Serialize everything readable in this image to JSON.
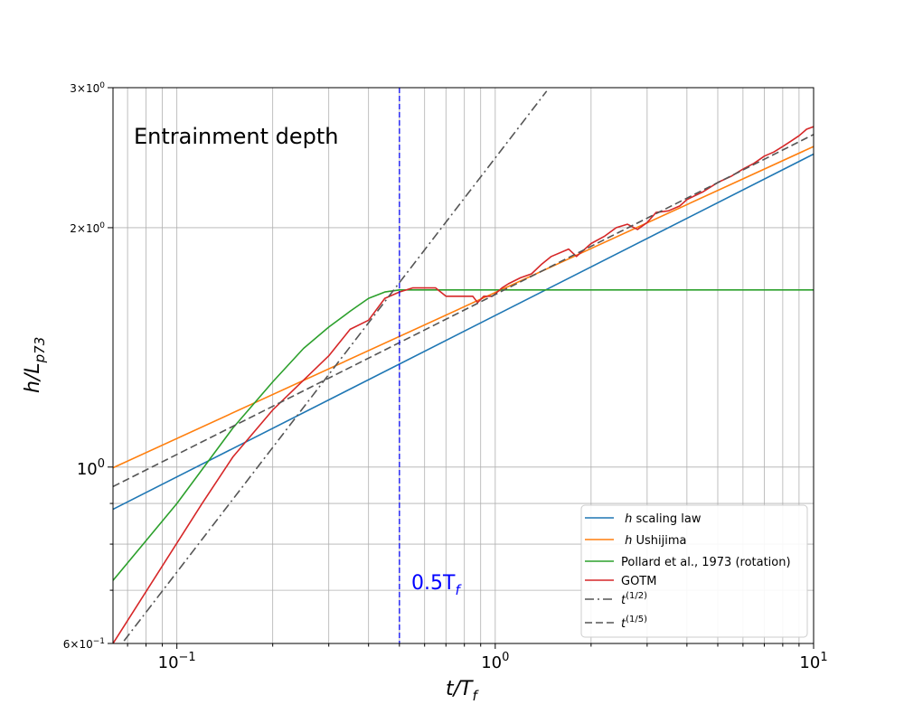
{
  "chart_data": {
    "type": "line",
    "title": "",
    "annotation": "Entrainment depth",
    "xlabel": "t/T",
    "xlabel_sub": "f",
    "ylabel": "h/L",
    "ylabel_sub": "p73",
    "xscale": "log",
    "yscale": "log",
    "xlim": [
      0.063,
      10
    ],
    "ylim": [
      0.6,
      3.0
    ],
    "grid": "both (major and minor)",
    "legend_position": "lower-right",
    "x_ticks": [
      {
        "value": 0.1,
        "base": "10",
        "exp": "−1"
      },
      {
        "value": 1,
        "base": "10",
        "exp": "0"
      },
      {
        "value": 10,
        "base": "10",
        "exp": "1"
      }
    ],
    "y_ticks": [
      {
        "value": 3,
        "mant": "3",
        "base": "10",
        "exp": "0"
      },
      {
        "value": 2,
        "mant": "2",
        "base": "10",
        "exp": "0"
      },
      {
        "value": 1,
        "mant": "",
        "base": "10",
        "exp": "0"
      },
      {
        "value": 0.6,
        "mant": "6",
        "base": "10",
        "exp": "−1"
      }
    ],
    "vline": {
      "x": 0.5,
      "label_main": "0.5T",
      "label_sub": "f",
      "color": "#0000ff"
    },
    "series": [
      {
        "name": "h scaling law",
        "name_italic": "h",
        "name_rest": " scaling law",
        "color": "#1f77b4",
        "style": "solid",
        "x": [
          0.063,
          10
        ],
        "y": [
          0.885,
          2.475
        ]
      },
      {
        "name": "h Ushijima",
        "name_italic": "h",
        "name_rest": " Ushijima",
        "color": "#ff7f0e",
        "style": "solid",
        "x": [
          0.063,
          10
        ],
        "y": [
          0.998,
          2.53
        ]
      },
      {
        "name": "Pollard et al., 1973 (rotation)",
        "color": "#2ca02c",
        "style": "solid",
        "x": [
          0.063,
          0.1,
          0.15,
          0.2,
          0.25,
          0.3,
          0.35,
          0.4,
          0.45,
          0.5,
          1,
          10
        ],
        "y": [
          0.72,
          0.9,
          1.12,
          1.28,
          1.41,
          1.5,
          1.57,
          1.63,
          1.66,
          1.67,
          1.67,
          1.67
        ]
      },
      {
        "name": "GOTM",
        "color": "#d62728",
        "style": "solid",
        "x": [
          0.063,
          0.12,
          0.15,
          0.2,
          0.3,
          0.35,
          0.4,
          0.45,
          0.5,
          0.55,
          0.65,
          0.7,
          0.85,
          0.88,
          0.92,
          0.98,
          1.05,
          1.1,
          1.2,
          1.3,
          1.4,
          1.5,
          1.7,
          1.8,
          2.0,
          2.2,
          2.4,
          2.6,
          2.8,
          3.0,
          3.2,
          3.5,
          3.8,
          4.0,
          4.5,
          5.0,
          5.5,
          6.0,
          6.5,
          7.0,
          7.5,
          8.0,
          8.5,
          9.0,
          9.5,
          10.0
        ],
        "y": [
          0.6,
          0.9,
          1.03,
          1.18,
          1.38,
          1.49,
          1.53,
          1.63,
          1.66,
          1.68,
          1.68,
          1.64,
          1.64,
          1.61,
          1.64,
          1.64,
          1.68,
          1.7,
          1.73,
          1.75,
          1.8,
          1.84,
          1.88,
          1.84,
          1.91,
          1.95,
          2.0,
          2.02,
          1.99,
          2.03,
          2.09,
          2.1,
          2.13,
          2.17,
          2.22,
          2.28,
          2.32,
          2.37,
          2.41,
          2.46,
          2.49,
          2.53,
          2.57,
          2.61,
          2.66,
          2.68
        ]
      },
      {
        "name": "t^(1/2)",
        "name_italic": "t",
        "name_sup": "(1/2)",
        "color": "#555555",
        "style": "dashdot",
        "x": [
          0.063,
          1.45
        ],
        "y": [
          0.58,
          2.97
        ]
      },
      {
        "name": "t^(1/5)",
        "name_italic": "t",
        "name_sup": "(1/5)",
        "color": "#555555",
        "style": "dashed",
        "x": [
          0.063,
          10
        ],
        "y": [
          0.945,
          2.62
        ]
      }
    ]
  }
}
